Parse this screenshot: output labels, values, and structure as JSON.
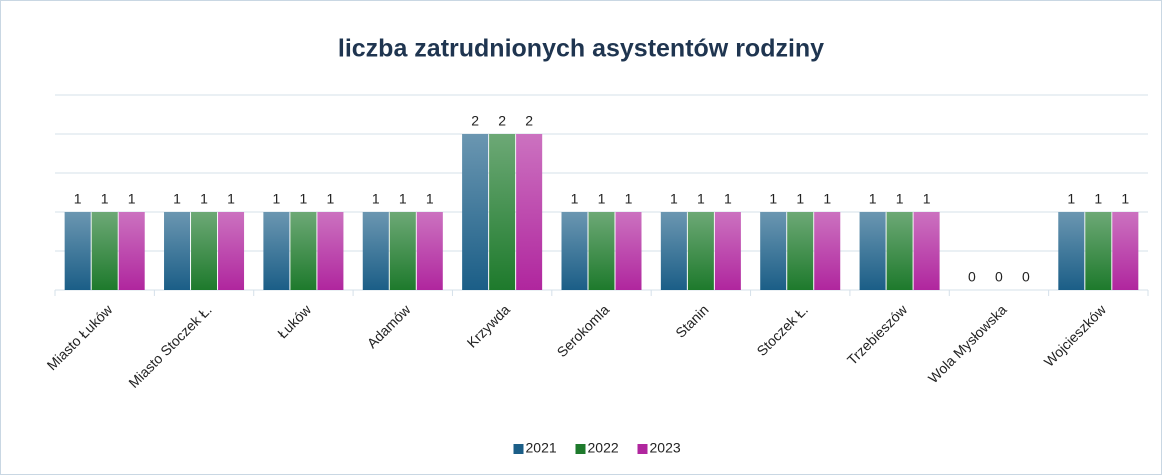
{
  "chart_data": {
    "type": "bar",
    "title": "liczba zatrudnionych asystentów rodziny",
    "categories": [
      "Miasto Łuków",
      "Miasto Stoczek Ł.",
      "Łuków",
      "Adamów",
      "Krzywda",
      "Serokomla",
      "Stanin",
      "Stoczek Ł.",
      "Trzebieszów",
      "Wola Mysłowska",
      "Wojcieszków"
    ],
    "series": [
      {
        "name": "2021",
        "color": "#1b5e87",
        "values": [
          1,
          1,
          1,
          1,
          2,
          1,
          1,
          1,
          1,
          0,
          1
        ]
      },
      {
        "name": "2022",
        "color": "#1e7a2c",
        "values": [
          1,
          1,
          1,
          1,
          2,
          1,
          1,
          1,
          1,
          0,
          1
        ]
      },
      {
        "name": "2023",
        "color": "#b0269e",
        "values": [
          1,
          1,
          1,
          1,
          2,
          1,
          1,
          1,
          1,
          0,
          1
        ]
      }
    ],
    "ylim": [
      0,
      2.5
    ],
    "yticks": [
      0,
      0.5,
      1,
      1.5,
      2,
      2.5
    ],
    "grid": true,
    "legend": "bottom"
  }
}
